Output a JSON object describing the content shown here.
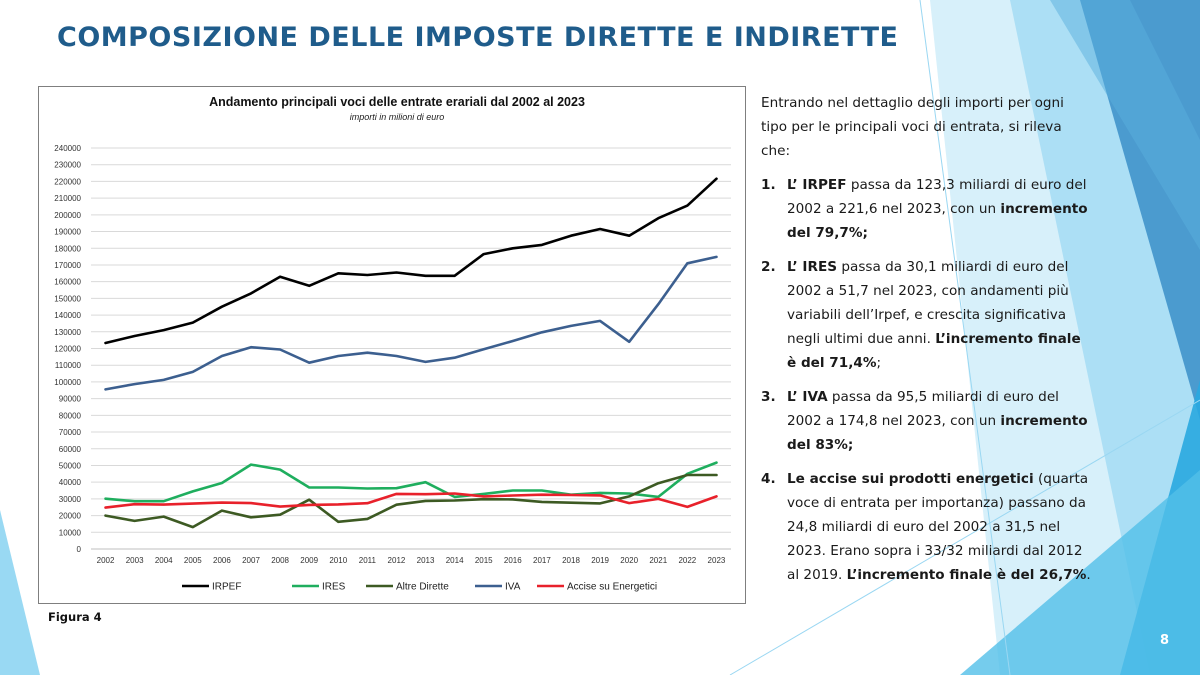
{
  "slide": {
    "title": "COMPOSIZIONE DELLE IMPOSTE DIRETTE E INDIRETTE",
    "figure_label": "Figura 4",
    "page_number": "8",
    "theme_colors": {
      "title": "#1f5c8b",
      "accent_light": "#7fd0f0",
      "accent_mid": "#29a9e0",
      "accent_dark": "#1a6fb0"
    }
  },
  "text": {
    "intro": "Entrando nel dettaglio degli importi per ogni tipo per le principali voci di entrata, si rileva che:",
    "items": [
      {
        "num": "1.",
        "runs": [
          {
            "t": "L’ IRPEF",
            "b": true
          },
          {
            "t": " passa da 123,3 miliardi di euro del 2002 a 221,6 nel 2023, con un ",
            "b": false
          },
          {
            "t": "incremento del 79,7%;",
            "b": true
          }
        ]
      },
      {
        "num": "2.",
        "runs": [
          {
            "t": "L’ IRES",
            "b": true
          },
          {
            "t": " passa da 30,1 miliardi di euro del 2002 a 51,7 nel 2023, con andamenti più variabili dell’Irpef, e crescita significativa negli ultimi due anni. ",
            "b": false
          },
          {
            "t": "L’incremento finale è del 71,4%",
            "b": true
          },
          {
            "t": ";",
            "b": false
          }
        ]
      },
      {
        "num": "3.",
        "runs": [
          {
            "t": "L’ IVA",
            "b": true
          },
          {
            "t": " passa da 95,5 miliardi di euro del 2002 a 174,8 nel 2023, con un ",
            "b": false
          },
          {
            "t": "incremento del 83%;",
            "b": true
          }
        ]
      },
      {
        "num": "4.",
        "runs": [
          {
            "t": "Le accise sui prodotti energetici",
            "b": true
          },
          {
            "t": " (quarta voce di entrata per importanza) passano da 24,8 miliardi di euro del 2002 a 31,5 nel 2023. Erano sopra i 33/32 miliardi dal 2012 al 2019. ",
            "b": false
          },
          {
            "t": "L’incremento finale è del 26,7%",
            "b": true
          },
          {
            "t": ".",
            "b": false
          }
        ]
      }
    ]
  },
  "chart_data": {
    "type": "line",
    "title": "Andamento principali voci delle entrate erariali dal 2002 al 2023",
    "subtitle": "importi in milioni di euro",
    "xlabel": "",
    "ylabel": "",
    "ylim": [
      0,
      240000
    ],
    "ytick_step": 10000,
    "grid": true,
    "legend_position": "bottom",
    "categories": [
      "2002",
      "2003",
      "2004",
      "2005",
      "2006",
      "2007",
      "2008",
      "2009",
      "2010",
      "2011",
      "2012",
      "2013",
      "2014",
      "2015",
      "2016",
      "2017",
      "2018",
      "2019",
      "2020",
      "2021",
      "2022",
      "2023"
    ],
    "series": [
      {
        "name": "IRPEF",
        "color": "#000000",
        "values": [
          123300,
          127500,
          131000,
          135500,
          145000,
          153000,
          163000,
          157500,
          165000,
          164000,
          165500,
          163500,
          163500,
          176500,
          180000,
          182000,
          187500,
          191500,
          187500,
          198000,
          205500,
          221600
        ]
      },
      {
        "name": "IRES",
        "color": "#1fae5e",
        "values": [
          30100,
          28600,
          28600,
          34500,
          39500,
          50500,
          47500,
          36800,
          36800,
          36200,
          36400,
          40000,
          31200,
          33000,
          35000,
          35000,
          32500,
          33600,
          33200,
          31200,
          45000,
          51700
        ]
      },
      {
        "name": "Altre Dirette",
        "color": "#3d5a23",
        "values": [
          20000,
          16800,
          19400,
          13100,
          23000,
          19000,
          20500,
          29500,
          16300,
          18000,
          26500,
          28800,
          29000,
          29800,
          29700,
          28200,
          27700,
          27300,
          31500,
          39400,
          44300,
          44300
        ]
      },
      {
        "name": "IVA",
        "color": "#3c5f8f",
        "values": [
          95500,
          98700,
          101200,
          106000,
          115500,
          120800,
          119400,
          111500,
          115500,
          117500,
          115500,
          112000,
          114500,
          119500,
          124500,
          129700,
          133500,
          136500,
          124000,
          146500,
          171000,
          174800
        ]
      },
      {
        "name": "Accise su Energetici",
        "color": "#e8212b",
        "values": [
          24800,
          26800,
          26600,
          27200,
          27800,
          27500,
          25400,
          26400,
          26700,
          27400,
          33000,
          32800,
          33200,
          31500,
          32000,
          32500,
          32300,
          32100,
          27500,
          30000,
          25200,
          31500
        ]
      }
    ]
  }
}
